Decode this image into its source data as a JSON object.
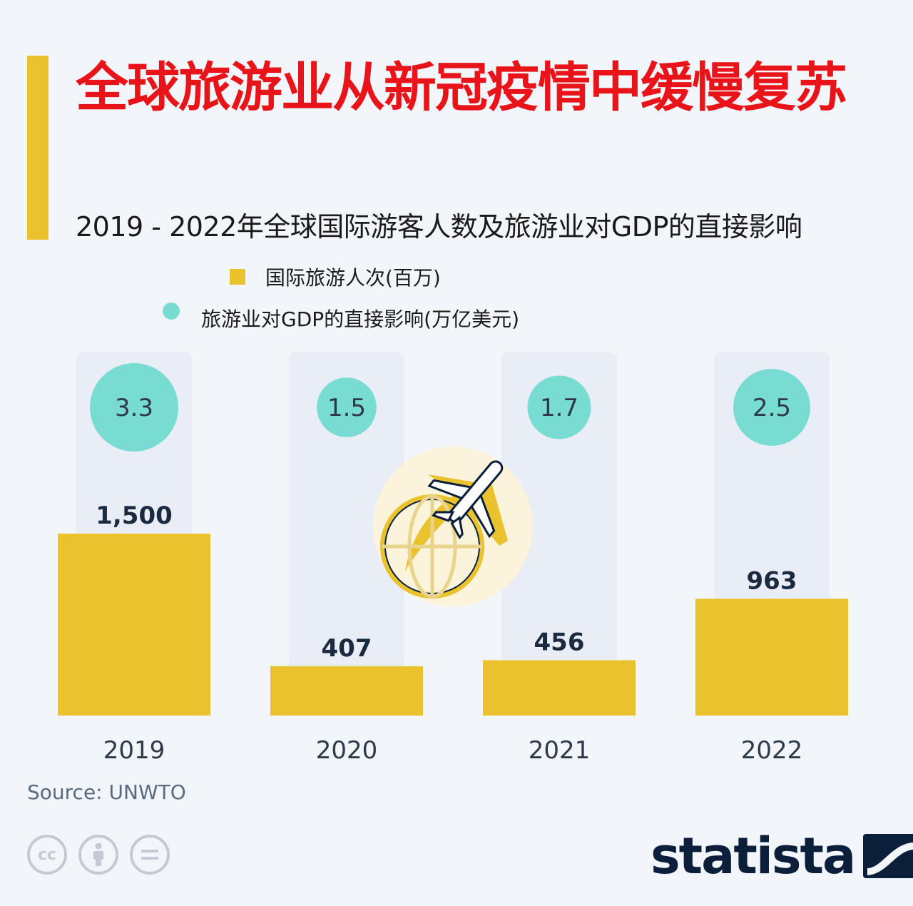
{
  "title": "全球旅游业从新冠疫情中缓慢复苏",
  "subtitle": "2019 - 2022年全球国际游客人数及旅游业对GDP的直接影响",
  "legend": {
    "arrivals_label": "国际旅游人次(百万)",
    "gdp_label": "旅游业对GDP的直接影响(万亿美元)"
  },
  "colors": {
    "bar": "#e9c22d",
    "bubble": "#79dcd2",
    "column_bg": "#e9eef6",
    "title": "#e8141a"
  },
  "chart_data": {
    "type": "bar",
    "categories": [
      "2019",
      "2020",
      "2021",
      "2022"
    ],
    "series": [
      {
        "name": "国际旅游人次(百万)",
        "values": [
          1500,
          407,
          456,
          963
        ],
        "value_labels": [
          "1,500",
          "407",
          "456",
          "963"
        ]
      },
      {
        "name": "旅游业对GDP的直接影响(万亿美元)",
        "values": [
          3.3,
          1.5,
          1.7,
          2.5
        ],
        "value_labels": [
          "3.3",
          "1.5",
          "1.7",
          "2.5"
        ]
      }
    ],
    "grid": false,
    "legend_position": "top"
  },
  "source": "Source: UNWTO",
  "footer": {
    "brand": "statista",
    "license_icons": [
      "cc-icon",
      "attribution-icon",
      "no-derivatives-icon"
    ]
  },
  "illustration": "airplane-globe-icon"
}
